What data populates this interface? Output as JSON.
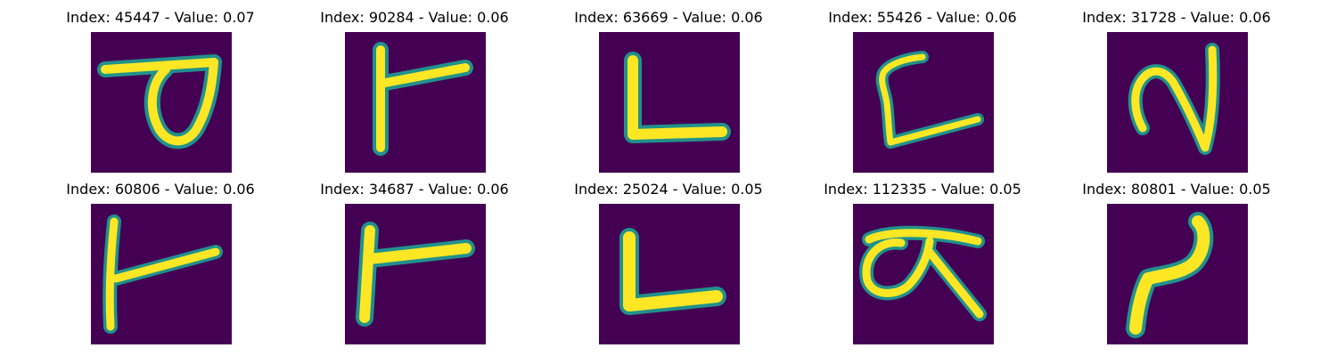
{
  "colors": {
    "background": "#440154",
    "stroke_core": "#fde725",
    "stroke_edge": "#21918c"
  },
  "panels": [
    {
      "title": "Index: 45447 - Value: 0.07",
      "glyph": "glyph-45447"
    },
    {
      "title": "Index: 90284 - Value: 0.06",
      "glyph": "glyph-90284"
    },
    {
      "title": "Index: 63669 - Value: 0.06",
      "glyph": "glyph-63669"
    },
    {
      "title": "Index: 55426 - Value: 0.06",
      "glyph": "glyph-55426"
    },
    {
      "title": "Index: 31728 - Value: 0.06",
      "glyph": "glyph-31728"
    },
    {
      "title": "Index: 60806 - Value: 0.06",
      "glyph": "glyph-60806"
    },
    {
      "title": "Index: 34687 - Value: 0.06",
      "glyph": "glyph-34687"
    },
    {
      "title": "Index: 25024 - Value: 0.05",
      "glyph": "glyph-25024"
    },
    {
      "title": "Index: 112335 - Value: 0.05",
      "glyph": "glyph-112335"
    },
    {
      "title": "Index: 80801 - Value: 0.05",
      "glyph": "glyph-80801"
    }
  ]
}
